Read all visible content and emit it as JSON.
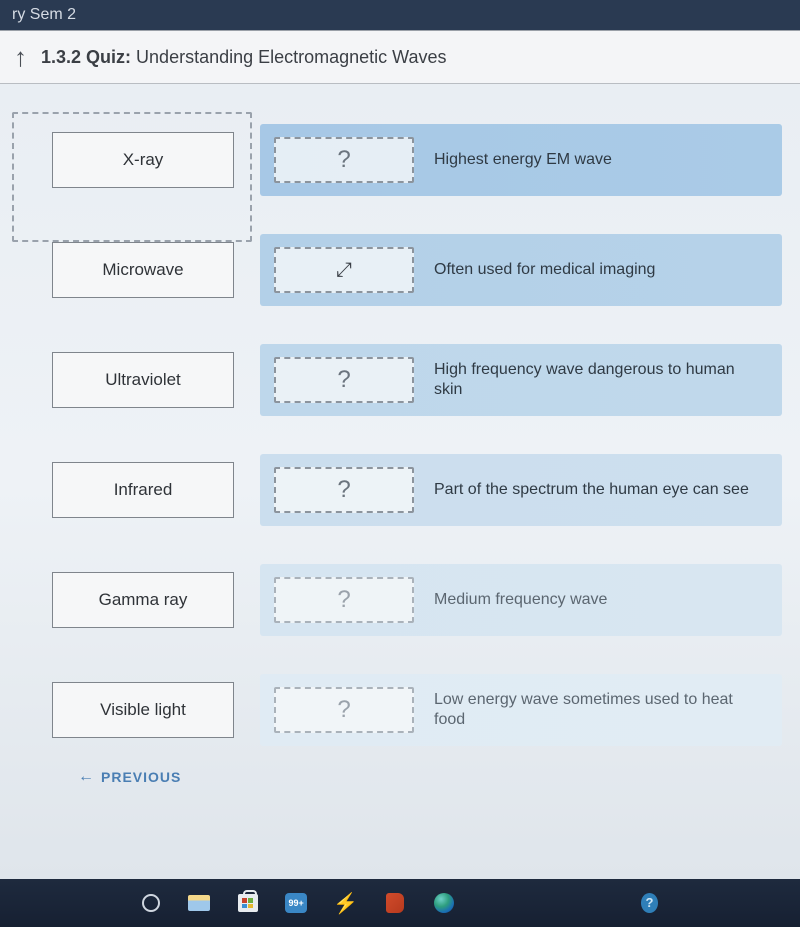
{
  "browser": {
    "tab_title": "ry Sem 2"
  },
  "header": {
    "quiz_number": "1.3.2 Quiz:",
    "quiz_title": "Understanding Electromagnetic Waves"
  },
  "quiz": {
    "placeholder": "?",
    "terms": [
      "X-ray",
      "Microwave",
      "Ultraviolet",
      "Infrared",
      "Gamma ray",
      "Visible light"
    ],
    "definitions": [
      "Highest energy EM wave",
      "Often used for medical imaging",
      "High frequency wave dangerous to human skin",
      "Part of the spectrum the human eye can see",
      "Medium frequency wave",
      "Low energy wave sometimes used to heat food"
    ],
    "cursor_row_index": 1
  },
  "nav": {
    "previous_label": "PREVIOUS"
  },
  "taskbar": {
    "mail_badge": "99+"
  },
  "colors": {
    "tab_bar_bg": "#2a3a52",
    "header_bg": "#f4f5f7",
    "content_bg_top": "#e9eef3",
    "taskbar_bg": "#1e2a3e",
    "drop_gradient_start": "#a7c8e6",
    "term_border": "#7f858c",
    "link": "#4a7eb3"
  }
}
